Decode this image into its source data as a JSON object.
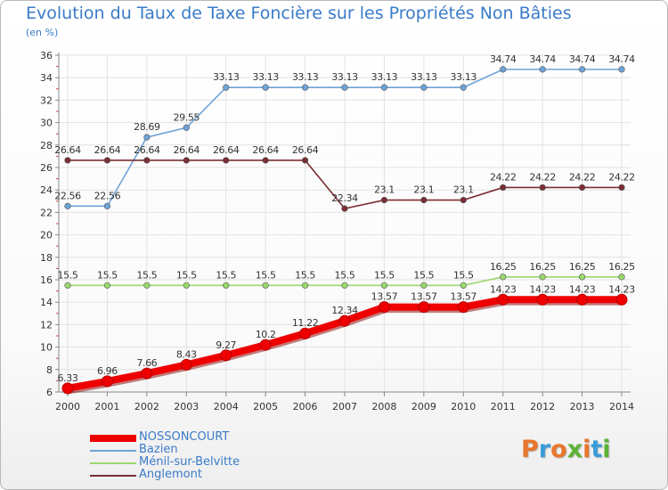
{
  "header": {
    "title": "Evolution du Taux de Taxe Foncière sur les Propriétés Non Bâties",
    "unit": "(en %)"
  },
  "logo": {
    "text": "Proxiti",
    "colors": [
      "#e8762c",
      "#3a9bd9",
      "#e8762c",
      "#5db234",
      "#e8762c",
      "#3a9bd9",
      "#5db234"
    ]
  },
  "chart_data": {
    "type": "line",
    "title": "Evolution du Taux de Taxe Foncière sur les Propriétés Non Bâties",
    "ylabel": "(en %)",
    "xlabel": "",
    "x": [
      2000,
      2001,
      2002,
      2003,
      2004,
      2005,
      2006,
      2007,
      2008,
      2009,
      2010,
      2011,
      2012,
      2013,
      2014
    ],
    "ylim": [
      6,
      36
    ],
    "yticks": [
      6,
      8,
      10,
      12,
      14,
      16,
      18,
      20,
      22,
      24,
      26,
      28,
      30,
      32,
      34,
      36
    ],
    "grid": true,
    "legend_position": "bottom-left",
    "series": [
      {
        "name": "NOSSONCOURT",
        "color": "#ee0000",
        "emphasis": true,
        "values": [
          6.33,
          6.96,
          7.66,
          8.43,
          9.27,
          10.2,
          11.22,
          12.34,
          13.57,
          13.57,
          13.57,
          14.23,
          14.23,
          14.23,
          14.23
        ],
        "labels": [
          "6.33",
          "6.96",
          "7.66",
          "8.43",
          "9.27",
          "10.2",
          "11.22",
          "12.34",
          "13.57",
          "13.57",
          "13.57",
          "14.23",
          "14.23",
          "14.23",
          "14.23"
        ]
      },
      {
        "name": "Bazien",
        "color": "#6ea3d8",
        "values": [
          22.56,
          22.56,
          28.69,
          29.55,
          33.13,
          33.13,
          33.13,
          33.13,
          33.13,
          33.13,
          33.13,
          34.74,
          34.74,
          34.74,
          34.74
        ],
        "labels": [
          "22.56",
          "22.56",
          "28.69",
          "29.55",
          "33.13",
          "33.13",
          "33.13",
          "33.13",
          "33.13",
          "33.13",
          "33.13",
          "34.74",
          "34.74",
          "34.74",
          "34.74"
        ]
      },
      {
        "name": "Ménil-sur-Belvitte",
        "color": "#9ad86e",
        "values": [
          15.5,
          15.5,
          15.5,
          15.5,
          15.5,
          15.5,
          15.5,
          15.5,
          15.5,
          15.5,
          15.5,
          16.25,
          16.25,
          16.25,
          16.25
        ],
        "labels": [
          "15.5",
          "15.5",
          "15.5",
          "15.5",
          "15.5",
          "15.5",
          "15.5",
          "15.5",
          "15.5",
          "15.5",
          "15.5",
          "16.25",
          "16.25",
          "16.25",
          "16.25"
        ]
      },
      {
        "name": "Anglemont",
        "color": "#7a2e33",
        "values": [
          26.64,
          26.64,
          26.64,
          26.64,
          26.64,
          26.64,
          26.64,
          22.34,
          23.1,
          23.1,
          23.1,
          24.22,
          24.22,
          24.22,
          24.22
        ],
        "labels": [
          "26.64",
          "26.64",
          "26.64",
          "26.64",
          "26.64",
          "26.64",
          "26.64",
          "22.34",
          "23.1",
          "23.1",
          "23.1",
          "24.22",
          "24.22",
          "24.22",
          "24.22"
        ]
      }
    ]
  }
}
